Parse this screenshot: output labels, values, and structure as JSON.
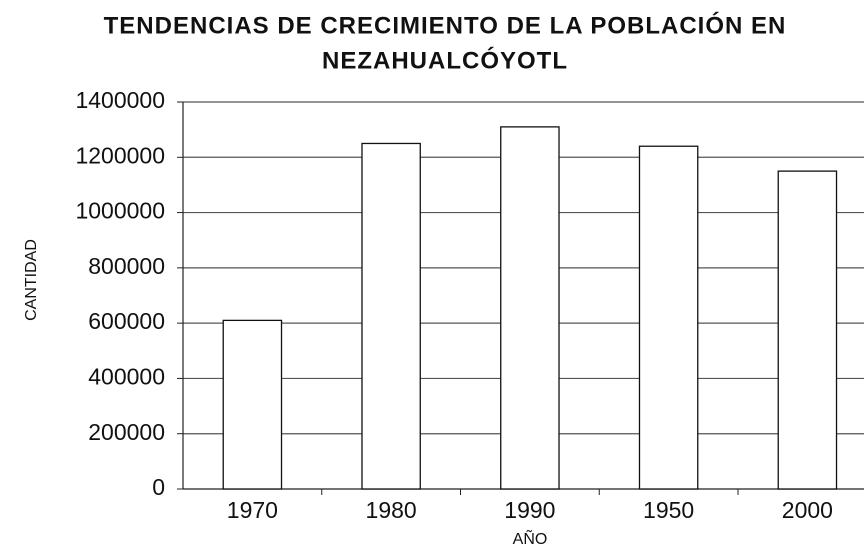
{
  "chart_data": {
    "type": "bar",
    "title": [
      "TENDENCIAS DE CRECIMIENTO DE LA POBLACIÓN EN",
      "NEZAHUALCÓYOTL"
    ],
    "x_label": "AÑO",
    "y_label": "CANTIDAD",
    "categories": [
      "1970",
      "1980",
      "1990",
      "1950",
      "2000"
    ],
    "values": [
      610000,
      1250000,
      1310000,
      1240000,
      1150000
    ],
    "color": "#ffffff",
    "ylim": [
      0,
      1400000
    ],
    "yticks": [
      0,
      200000,
      400000,
      600000,
      800000,
      1000000,
      1200000,
      1400000
    ],
    "grid": true
  }
}
